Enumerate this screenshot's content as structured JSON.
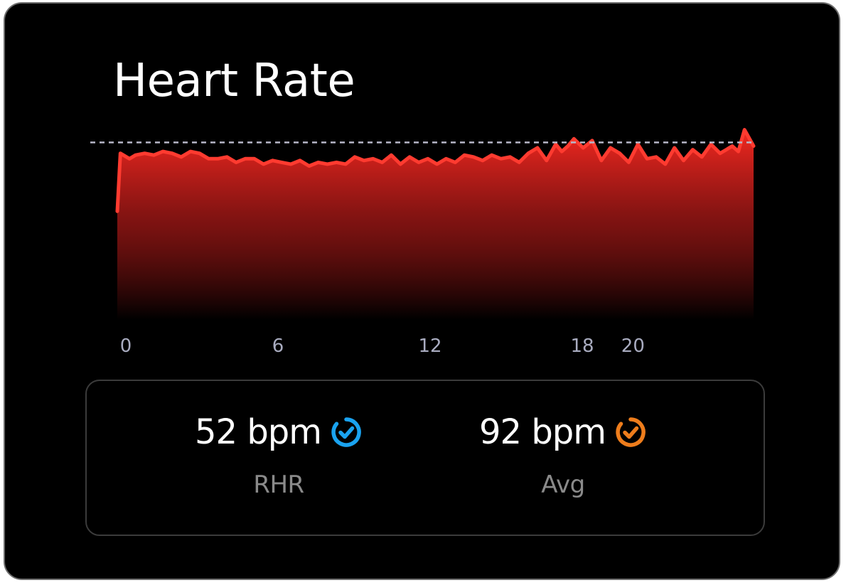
{
  "card": {
    "title": "Heart Rate"
  },
  "chart_data": {
    "type": "area",
    "x_ticks": [
      0,
      6,
      12,
      18,
      20
    ],
    "x": [
      0,
      0.1,
      0.4,
      0.6,
      0.9,
      1.2,
      1.5,
      1.8,
      2.1,
      2.4,
      2.7,
      3.0,
      3.3,
      3.6,
      3.9,
      4.2,
      4.5,
      4.8,
      5.1,
      5.4,
      5.7,
      6.0,
      6.3,
      6.6,
      6.9,
      7.2,
      7.5,
      7.8,
      8.1,
      8.4,
      8.7,
      9.0,
      9.3,
      9.6,
      9.9,
      10.2,
      10.5,
      10.8,
      11.1,
      11.4,
      11.7,
      12.0,
      12.3,
      12.6,
      12.9,
      13.2,
      13.5,
      13.8,
      14.1,
      14.4,
      14.6,
      14.8,
      15.0,
      15.3,
      15.6,
      15.9,
      16.2,
      16.5,
      16.8,
      17.1,
      17.4,
      17.7,
      18.0,
      18.3,
      18.6,
      18.9,
      19.2,
      19.5,
      19.8,
      20.0,
      20.1,
      20.2,
      20.4,
      20.6,
      20.9
    ],
    "y": [
      60,
      92,
      89,
      91,
      92,
      91,
      93,
      92,
      90,
      93,
      92,
      89,
      89,
      90,
      87,
      89,
      89,
      86,
      88,
      87,
      86,
      88,
      85,
      87,
      86,
      87,
      86,
      90,
      88,
      89,
      87,
      91,
      86,
      90,
      87,
      89,
      86,
      89,
      87,
      91,
      90,
      88,
      91,
      89,
      90,
      87,
      92,
      95,
      88,
      97,
      93,
      96,
      100,
      95,
      99,
      88,
      95,
      92,
      87,
      97,
      89,
      90,
      86,
      95,
      88,
      94,
      90,
      97,
      92,
      94,
      95,
      96,
      93,
      105,
      96
    ],
    "y_max": 106,
    "reference_line": 98,
    "colors": {
      "line": "#ff3b30",
      "fill_top": "#ff2a22",
      "fill_bottom": "#000000",
      "reference": "#b7b7c8"
    }
  },
  "stats": {
    "rhr": {
      "value": "52 bpm",
      "label": "RHR",
      "icon": "check-badge-icon",
      "color": "#1aa3f0"
    },
    "avg": {
      "value": "92 bpm",
      "label": "Avg",
      "icon": "check-badge-icon",
      "color": "#ee7d1c"
    }
  }
}
